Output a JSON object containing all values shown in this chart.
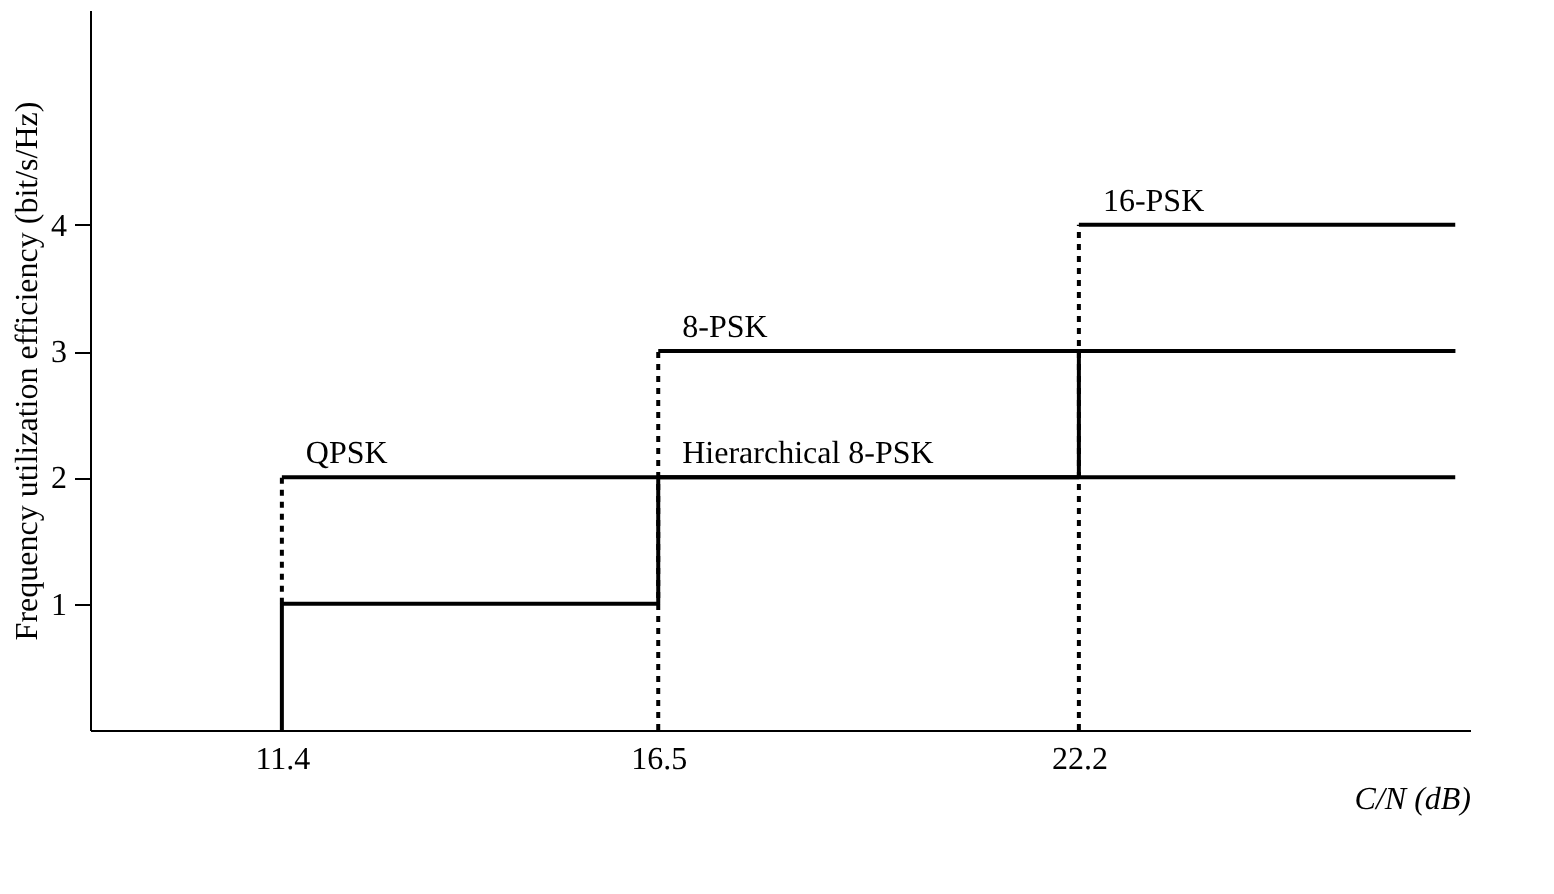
{
  "chart_data": {
    "type": "line",
    "xlabel": "C/N (dB)",
    "ylabel": "Frequency utilization efficiency (bit/s/Hz)",
    "xlim": [
      8.8,
      27.5
    ],
    "ylim": [
      0,
      5.7
    ],
    "xticks": [
      11.4,
      16.5,
      22.2
    ],
    "yticks": [
      1,
      2,
      3,
      4
    ],
    "grid": false,
    "series": [
      {
        "color": "#000000",
        "line_style": "dashed",
        "x": [
          11.4,
          11.4
        ],
        "values": [
          1,
          2
        ]
      },
      {
        "color": "#000000",
        "line_style": "dashed",
        "x": [
          16.5,
          16.5
        ],
        "values": [
          0,
          3
        ]
      },
      {
        "color": "#000000",
        "line_style": "dashed",
        "x": [
          22.2,
          22.2
        ],
        "values": [
          0,
          4
        ]
      },
      {
        "color": "#000000",
        "line_style": "solid",
        "x": [
          11.4,
          27.3
        ],
        "values": [
          2,
          2
        ]
      },
      {
        "color": "#000000",
        "line_style": "solid",
        "x": [
          16.5,
          27.3
        ],
        "values": [
          3,
          3
        ]
      },
      {
        "color": "#000000",
        "line_style": "solid",
        "x": [
          22.2,
          27.3
        ],
        "values": [
          4,
          4
        ]
      },
      {
        "color": "#000000",
        "line_style": "solid",
        "x": [
          11.4,
          11.4,
          16.5,
          16.5,
          22.2,
          22.2,
          27.3
        ],
        "values": [
          0,
          1,
          1,
          2,
          2,
          3,
          3
        ]
      }
    ],
    "annotations": [
      {
        "text": "QPSK",
        "x": 11.4,
        "y": 2
      },
      {
        "text": "8-PSK",
        "x": 16.5,
        "y": 3
      },
      {
        "text": "Hierarchical 8-PSK",
        "x": 16.5,
        "y": 2
      },
      {
        "text": "16-PSK",
        "x": 22.2,
        "y": 4
      }
    ]
  }
}
